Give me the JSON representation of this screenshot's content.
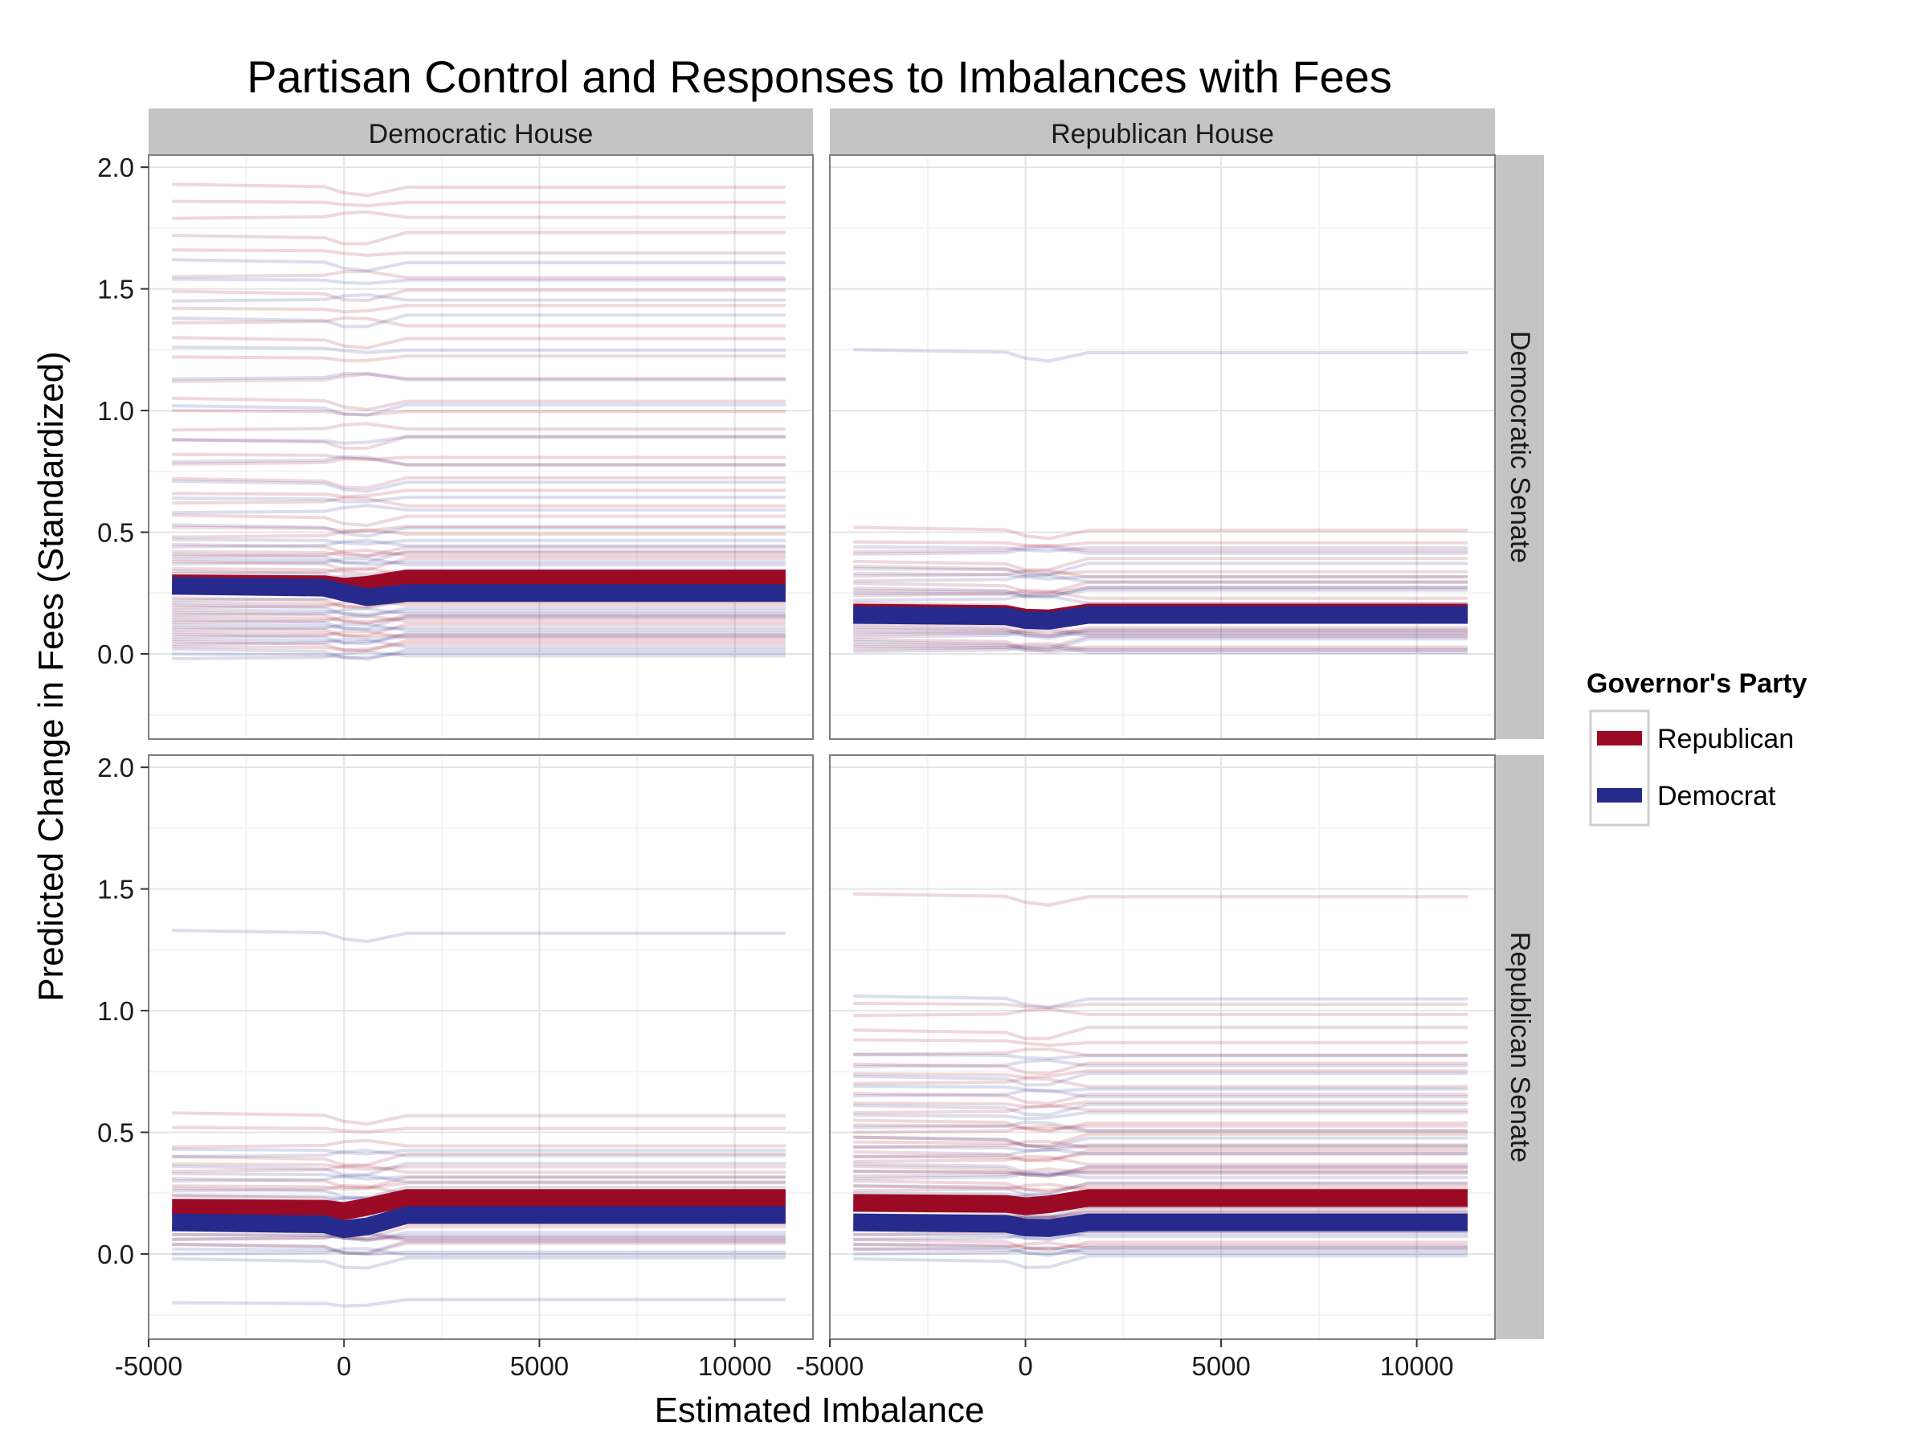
{
  "colors": {
    "republican": "#9b0a24",
    "democrat": "#262a8c",
    "strip_bg": "#c4c4c4",
    "grid_major": "#e4e4e4",
    "grid_minor": "#f3f3f3",
    "panel_border": "#7f7f7f"
  },
  "chart_data": {
    "type": "line",
    "title": "Partisan Control and Responses to Imbalances with Fees",
    "xlabel": "Estimated Imbalance",
    "ylabel": "Predicted Change in Fees (Standardized)",
    "xlim": [
      -5000,
      12000
    ],
    "ylim": [
      -0.35,
      2.05
    ],
    "xticks": [
      -5000,
      0,
      5000,
      10000
    ],
    "xtick_labels": [
      "-5000",
      "0",
      "5000",
      "10000"
    ],
    "yticks": [
      0.0,
      0.5,
      1.0,
      1.5,
      2.0
    ],
    "ytick_labels": [
      "0.0",
      "0.5",
      "1.0",
      "1.5",
      "2.0"
    ],
    "x_range_of_lines": [
      -4400,
      11300
    ],
    "grid": true,
    "legend": {
      "title": "Governor's Party",
      "position": "right",
      "entries": [
        {
          "label": "Republican",
          "color_key": "republican"
        },
        {
          "label": "Democrat",
          "color_key": "democrat"
        }
      ]
    },
    "facets": [
      {
        "col_label": "Democratic House",
        "row_label": "Democratic Senate",
        "mean_lines": [
          {
            "party": "Republican",
            "start": 0.29,
            "end": 0.31,
            "dip": 0.02
          },
          {
            "party": "Democrat",
            "start": 0.28,
            "end": 0.25,
            "dip": 0.04
          }
        ],
        "lines": {
          "republican": [
            1.93,
            1.86,
            1.79,
            1.72,
            1.66,
            1.55,
            1.49,
            1.42,
            1.36,
            1.3,
            1.22,
            1.12,
            1.05,
            1.0,
            0.92,
            0.88,
            0.82,
            0.78,
            0.72,
            0.66,
            0.62,
            0.57,
            0.52,
            0.48,
            0.45,
            0.42,
            0.4,
            0.38,
            0.35,
            0.33,
            0.31,
            0.28,
            0.26,
            0.23,
            0.21,
            0.19,
            0.17,
            0.15,
            0.13,
            0.11,
            0.09,
            0.07,
            0.05,
            0.03
          ],
          "democrat": [
            1.62,
            1.54,
            1.45,
            1.38,
            1.26,
            1.13,
            1.02,
            0.88,
            0.79,
            0.71,
            0.64,
            0.58,
            0.53,
            0.47,
            0.44,
            0.41,
            0.39,
            0.37,
            0.34,
            0.32,
            0.3,
            0.27,
            0.25,
            0.22,
            0.2,
            0.18,
            0.16,
            0.14,
            0.12,
            0.1,
            0.08,
            0.06,
            0.04,
            0.02,
            0.0,
            -0.02
          ]
        }
      },
      {
        "col_label": "Republican House",
        "row_label": "Democratic Senate",
        "mean_lines": [
          {
            "party": "Republican",
            "start": 0.17,
            "end": 0.17,
            "dip": 0.03
          },
          {
            "party": "Democrat",
            "start": 0.16,
            "end": 0.16,
            "dip": 0.03
          }
        ],
        "lines": {
          "republican": [
            0.52,
            0.46,
            0.42,
            0.38,
            0.35,
            0.32,
            0.29,
            0.26,
            0.24,
            0.21,
            0.19,
            0.14,
            0.12,
            0.1,
            0.08,
            0.06,
            0.04,
            0.02
          ],
          "democrat": [
            1.25,
            0.44,
            0.41,
            0.36,
            0.33,
            0.3,
            0.27,
            0.25,
            0.22,
            0.2,
            0.16,
            0.13,
            0.11,
            0.09,
            0.07,
            0.05,
            0.03,
            0.01
          ]
        }
      },
      {
        "col_label": "Democratic House",
        "row_label": "Republican Senate",
        "mean_lines": [
          {
            "party": "Republican",
            "start": 0.19,
            "end": 0.23,
            "dip": 0.02
          },
          {
            "party": "Democrat",
            "start": 0.13,
            "end": 0.16,
            "dip": 0.04
          }
        ],
        "lines": {
          "republican": [
            0.58,
            0.52,
            0.44,
            0.4,
            0.37,
            0.34,
            0.31,
            0.28,
            0.26,
            0.24,
            0.22,
            0.19,
            0.17,
            0.14,
            0.12,
            0.1,
            0.08,
            0.06,
            0.04
          ],
          "democrat": [
            1.33,
            0.43,
            0.4,
            0.36,
            0.33,
            0.3,
            0.27,
            0.24,
            0.21,
            0.18,
            0.15,
            0.13,
            0.1,
            0.08,
            0.06,
            0.04,
            0.02,
            0.0,
            -0.02,
            -0.2
          ]
        }
      },
      {
        "col_label": "Republican House",
        "row_label": "Republican Senate",
        "mean_lines": [
          {
            "party": "Republican",
            "start": 0.21,
            "end": 0.23,
            "dip": 0.02
          },
          {
            "party": "Democrat",
            "start": 0.13,
            "end": 0.13,
            "dip": 0.03
          }
        ],
        "lines": {
          "republican": [
            1.48,
            1.03,
            0.98,
            0.92,
            0.88,
            0.82,
            0.78,
            0.74,
            0.7,
            0.66,
            0.62,
            0.58,
            0.55,
            0.53,
            0.5,
            0.48,
            0.46,
            0.44,
            0.42,
            0.4,
            0.38,
            0.36,
            0.34,
            0.32,
            0.3,
            0.28,
            0.26,
            0.24,
            0.22,
            0.2,
            0.18,
            0.16,
            0.14,
            0.12,
            0.1,
            0.08,
            0.06,
            0.04,
            0.02
          ],
          "democrat": [
            1.06,
            0.82,
            0.77,
            0.73,
            0.69,
            0.65,
            0.61,
            0.57,
            0.52,
            0.48,
            0.44,
            0.4,
            0.37,
            0.34,
            0.31,
            0.28,
            0.25,
            0.22,
            0.19,
            0.16,
            0.13,
            0.1,
            0.08,
            0.06,
            0.04,
            0.02,
            0.0,
            -0.02
          ]
        }
      }
    ]
  }
}
